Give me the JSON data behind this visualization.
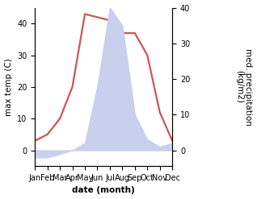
{
  "months": [
    "Jan",
    "Feb",
    "Mar",
    "Apr",
    "May",
    "Jun",
    "Jul",
    "Aug",
    "Sep",
    "Oct",
    "Nov",
    "Dec"
  ],
  "month_indices": [
    1,
    2,
    3,
    4,
    5,
    6,
    7,
    8,
    9,
    10,
    11,
    12
  ],
  "temperature": [
    3,
    5,
    10,
    20,
    43,
    42,
    41,
    37,
    37,
    30,
    12,
    3
  ],
  "precipitation": [
    -2,
    -2,
    -1,
    0,
    2,
    18,
    40,
    35,
    10,
    3,
    1,
    2
  ],
  "temp_color": "#cd5555",
  "precip_fill_color": "#c8d0ed",
  "temp_ylim": [
    -5,
    45
  ],
  "temp_yticks": [
    0,
    10,
    20,
    30,
    40
  ],
  "precip_ylim": [
    0,
    40
  ],
  "precip_yticks": [
    0,
    10,
    20,
    30,
    40
  ],
  "xlabel": "date (month)",
  "ylabel_left": "max temp (C)",
  "ylabel_right": "med. precipitation\n(kg/m2)",
  "bg_color": "#ffffff",
  "linewidth": 1.6,
  "title_fontsize": 8,
  "label_fontsize": 7.5,
  "tick_fontsize": 7
}
